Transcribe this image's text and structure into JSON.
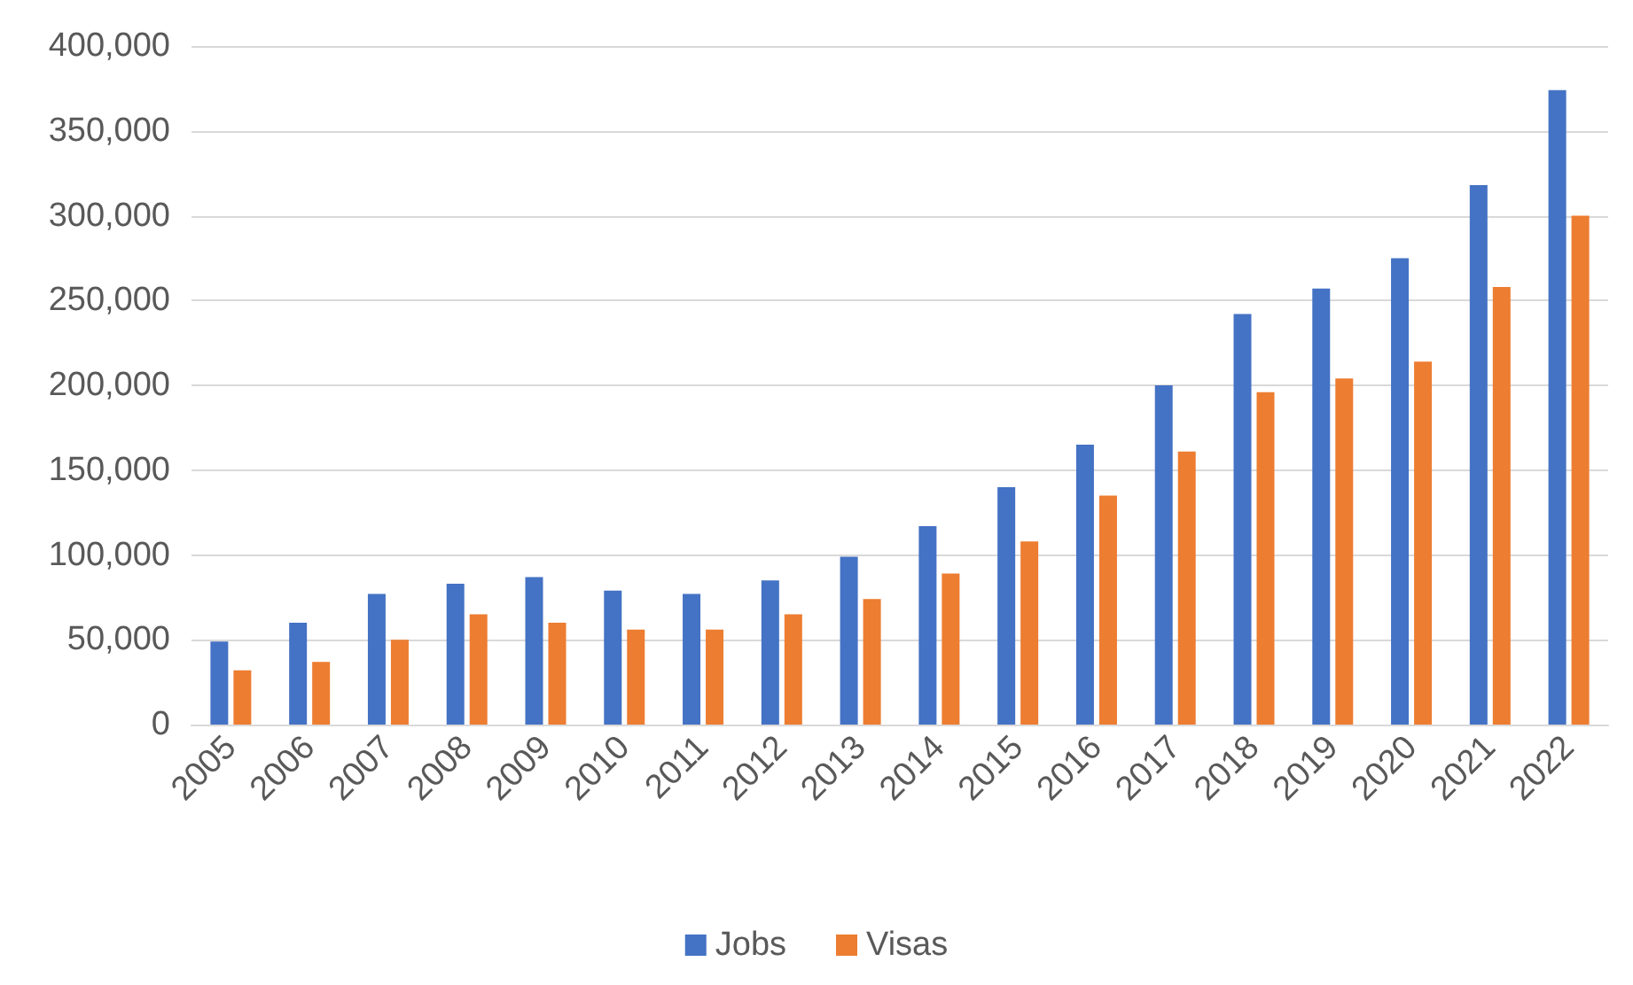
{
  "chart_data": {
    "type": "bar",
    "categories": [
      "2005",
      "2006",
      "2007",
      "2008",
      "2009",
      "2010",
      "2011",
      "2012",
      "2013",
      "2014",
      "2015",
      "2016",
      "2017",
      "2018",
      "2019",
      "2020",
      "2021",
      "2022"
    ],
    "series": [
      {
        "name": "Jobs",
        "color": "#4472c4",
        "values": [
          49000,
          60000,
          77000,
          83000,
          87000,
          79000,
          77000,
          85000,
          99000,
          117000,
          140000,
          165000,
          200000,
          242000,
          257000,
          275000,
          318000,
          374000
        ]
      },
      {
        "name": "Visas",
        "color": "#ed7d31",
        "values": [
          32000,
          37000,
          50000,
          65000,
          60000,
          56000,
          56000,
          65000,
          74000,
          89000,
          108000,
          135000,
          161000,
          196000,
          204000,
          214000,
          258000,
          300000
        ]
      }
    ],
    "ylim": [
      0,
      400000
    ],
    "yticks": [
      0,
      {
        "value": 50000,
        "label": "50,000"
      },
      {
        "value": 100000,
        "label": "100,000"
      },
      {
        "value": 150000,
        "label": "150,000"
      },
      {
        "value": 200000,
        "label": "200,000"
      },
      {
        "value": 250000,
        "label": "250,000"
      },
      {
        "value": 300000,
        "label": "300,000"
      },
      {
        "value": 350000,
        "label": "350,000"
      },
      {
        "value": 400000,
        "label": "400,000"
      }
    ],
    "grid": "y",
    "legend": "bottom"
  }
}
